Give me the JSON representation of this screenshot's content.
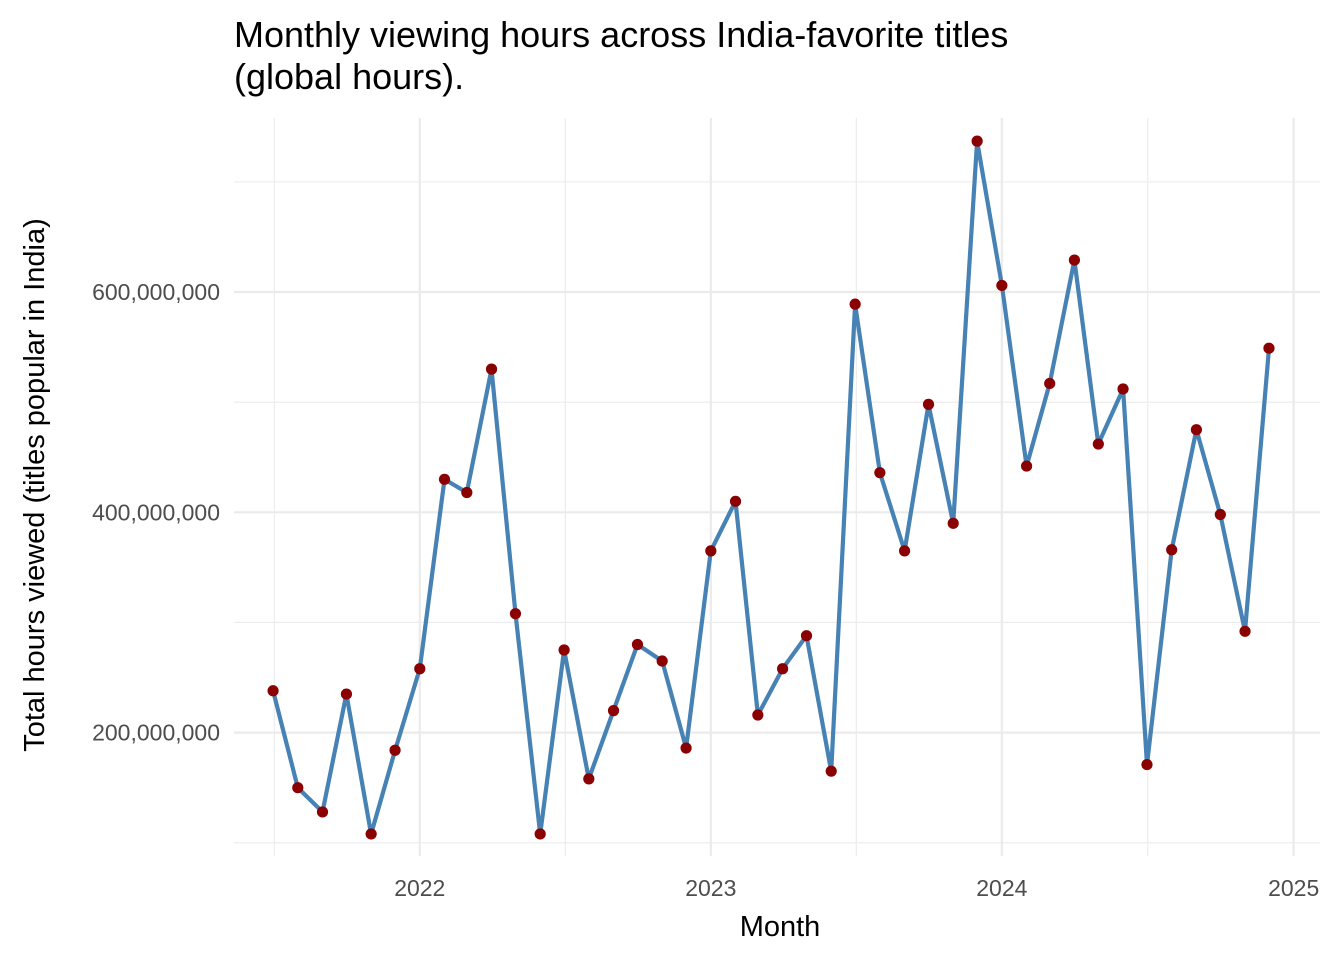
{
  "chart_data": {
    "type": "line",
    "title": "Monthly viewing hours across India-favorite titles\n(global hours).",
    "xlabel": "Month",
    "ylabel": "Total hours viewed (titles popular in India)",
    "x_ticks": [
      "2022",
      "2023",
      "2024",
      "2025"
    ],
    "y_ticks": [
      "200,000,000",
      "400,000,000",
      "600,000,000"
    ],
    "y_tick_values": [
      200000000,
      400000000,
      600000000
    ],
    "xlim": [
      "2021-05-13",
      "2025-02-03"
    ],
    "ylim": [
      88000000,
      758000000
    ],
    "grid": true,
    "line_color": "#4682b4",
    "point_color": "#8b0000",
    "series": [
      {
        "x": [
          "2021-07-01",
          "2021-08-01",
          "2021-09-01",
          "2021-10-01",
          "2021-11-01",
          "2021-12-01",
          "2022-01-01",
          "2022-02-01",
          "2022-03-01",
          "2022-04-01",
          "2022-05-01",
          "2022-06-01",
          "2022-07-01",
          "2022-08-01",
          "2022-09-01",
          "2022-10-01",
          "2022-11-01",
          "2022-12-01",
          "2023-01-01",
          "2023-02-01",
          "2023-03-01",
          "2023-04-01",
          "2023-05-01",
          "2023-06-01",
          "2023-07-01",
          "2023-08-01",
          "2023-09-01",
          "2023-10-01",
          "2023-11-01",
          "2023-12-01",
          "2024-01-01",
          "2024-02-01",
          "2024-03-01",
          "2024-04-01",
          "2024-05-01",
          "2024-06-01",
          "2024-07-01",
          "2024-08-01",
          "2024-09-01",
          "2024-10-01",
          "2024-11-01",
          "2024-12-01"
        ],
        "values": [
          238000000,
          150000000,
          128000000,
          235000000,
          108000000,
          184000000,
          258000000,
          430000000,
          418000000,
          530000000,
          308000000,
          108000000,
          275000000,
          158000000,
          220000000,
          280000000,
          265000000,
          186000000,
          365000000,
          410000000,
          216000000,
          258000000,
          288000000,
          165000000,
          589000000,
          436000000,
          365000000,
          498000000,
          390000000,
          737000000,
          606000000,
          442000000,
          517000000,
          629000000,
          462000000,
          512000000,
          171000000,
          366000000,
          475000000,
          398000000,
          292000000,
          549000000
        ]
      }
    ]
  }
}
